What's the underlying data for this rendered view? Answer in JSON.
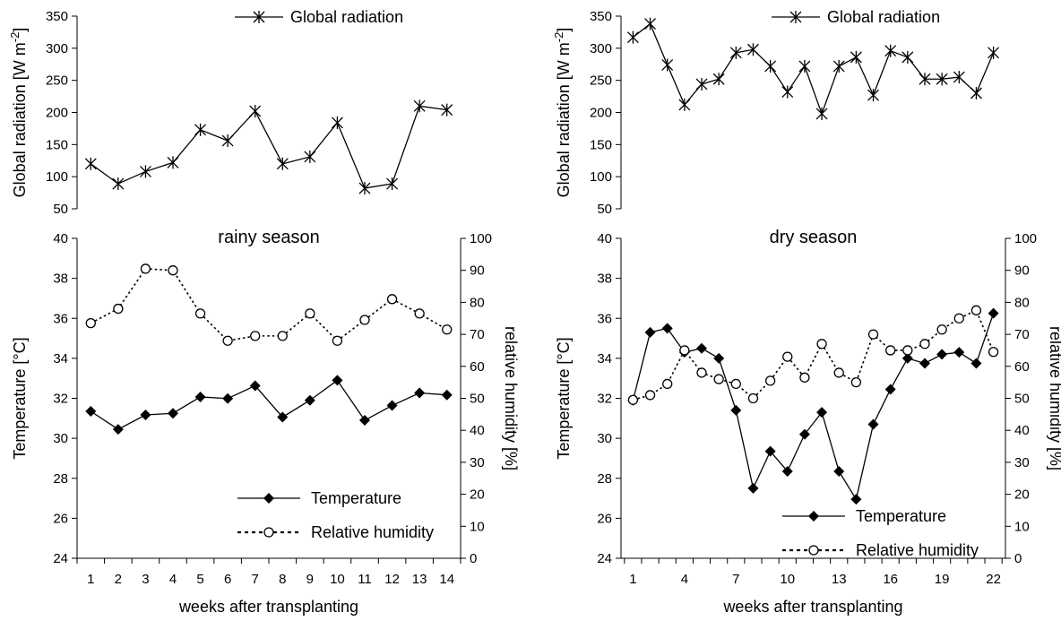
{
  "chart_data": [
    {
      "type": "line",
      "panel": "rainy-radiation",
      "x": [
        1,
        2,
        3,
        4,
        5,
        6,
        7,
        8,
        9,
        10,
        11,
        12,
        13,
        14
      ],
      "xlim": [
        0.5,
        14.5
      ],
      "xticks": [
        1,
        2,
        3,
        4,
        5,
        6,
        7,
        8,
        9,
        10,
        11,
        12,
        13,
        14
      ],
      "ylabel": "Global radiation [W m-2]",
      "ylim": [
        50,
        350
      ],
      "yticks": [
        50,
        100,
        150,
        200,
        250,
        300,
        350
      ],
      "legend": "top-right",
      "series": [
        {
          "name": "Global radiation",
          "marker": "star",
          "line": "solid",
          "values": [
            120,
            89,
            108,
            122,
            173,
            156,
            202,
            120,
            131,
            184,
            82,
            89,
            210,
            204
          ]
        }
      ]
    },
    {
      "type": "line",
      "panel": "rainy-climate",
      "title": "rainy season",
      "x": [
        1,
        2,
        3,
        4,
        5,
        6,
        7,
        8,
        9,
        10,
        11,
        12,
        13,
        14
      ],
      "xlim": [
        0.5,
        14.5
      ],
      "xticks": [
        1,
        2,
        3,
        4,
        5,
        6,
        7,
        8,
        9,
        10,
        11,
        12,
        13,
        14
      ],
      "xlabel": "weeks after transplanting",
      "ylabel": "Temperature [°C]",
      "ylim": [
        24,
        40
      ],
      "yticks": [
        24,
        26,
        28,
        30,
        32,
        34,
        36,
        38,
        40
      ],
      "y2label": "relative humidity [%]",
      "y2lim": [
        0,
        100
      ],
      "y2ticks": [
        0,
        10,
        20,
        30,
        40,
        50,
        60,
        70,
        80,
        90,
        100
      ],
      "legend": "bottom-right",
      "series": [
        {
          "name": "Temperature",
          "axis": "left",
          "marker": "diamond",
          "line": "solid",
          "values": [
            31.35,
            30.45,
            31.17,
            31.25,
            32.07,
            31.99,
            32.63,
            31.06,
            31.9,
            32.9,
            30.9,
            31.64,
            32.27,
            32.17
          ]
        },
        {
          "name": "Relative humidity",
          "axis": "right",
          "marker": "circle",
          "line": "dotted",
          "values": [
            73.5,
            78,
            90.5,
            90,
            76.5,
            68,
            69.5,
            69.5,
            76.5,
            68,
            74.5,
            81,
            76.5,
            71.5
          ]
        }
      ]
    },
    {
      "type": "line",
      "panel": "dry-radiation",
      "x": [
        1,
        2,
        3,
        4,
        5,
        6,
        7,
        8,
        9,
        10,
        11,
        12,
        13,
        14,
        15,
        16,
        17,
        18,
        19,
        20,
        21,
        22
      ],
      "xlim": [
        0.3,
        22.7
      ],
      "xticks": [
        1,
        4,
        7,
        10,
        13,
        16,
        19,
        22
      ],
      "ylabel": "Global radiation [W m-2]",
      "ylim": [
        50,
        350
      ],
      "yticks": [
        50,
        100,
        150,
        200,
        250,
        300,
        350
      ],
      "legend": "top-right",
      "series": [
        {
          "name": "Global radiation",
          "marker": "star",
          "line": "solid",
          "values": [
            317,
            338,
            274,
            212,
            244,
            252,
            293,
            298,
            272,
            232,
            272,
            198,
            272,
            286,
            227,
            296,
            286,
            252,
            252,
            255,
            230,
            293
          ]
        }
      ]
    },
    {
      "type": "line",
      "panel": "dry-climate",
      "title": "dry season",
      "x": [
        1,
        2,
        3,
        4,
        5,
        6,
        7,
        8,
        9,
        10,
        11,
        12,
        13,
        14,
        15,
        16,
        17,
        18,
        19,
        20,
        21,
        22
      ],
      "xlim": [
        0.3,
        22.7
      ],
      "xticks": [
        1,
        4,
        7,
        10,
        13,
        16,
        19,
        22
      ],
      "xlabel": "weeks after transplanting",
      "ylabel": "Temperature [°C]",
      "ylim": [
        24,
        40
      ],
      "yticks": [
        24,
        26,
        28,
        30,
        32,
        34,
        36,
        38,
        40
      ],
      "y2label": "relative humidity [%]",
      "y2lim": [
        0,
        100
      ],
      "y2ticks": [
        0,
        10,
        20,
        30,
        40,
        50,
        60,
        70,
        80,
        90,
        100
      ],
      "legend": "bottom-right",
      "series": [
        {
          "name": "Temperature",
          "axis": "left",
          "marker": "diamond",
          "line": "solid",
          "values": [
            31.9,
            35.3,
            35.5,
            34.3,
            34.5,
            34.0,
            31.4,
            27.5,
            29.35,
            28.35,
            30.2,
            31.3,
            28.35,
            26.95,
            30.7,
            32.45,
            34.0,
            33.75,
            34.2,
            34.3,
            33.75,
            36.25
          ]
        },
        {
          "name": "Relative humidity",
          "axis": "right",
          "marker": "circle",
          "line": "dotted",
          "values": [
            49.5,
            51,
            54.5,
            65,
            58,
            56,
            54.5,
            50,
            55.5,
            63,
            56.5,
            67,
            58,
            55,
            70,
            65,
            65,
            67,
            71.5,
            75,
            77.5,
            64.5
          ]
        }
      ]
    }
  ]
}
